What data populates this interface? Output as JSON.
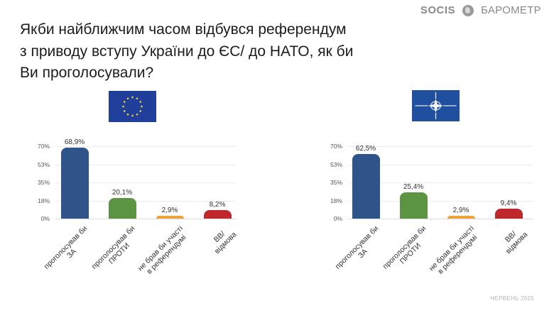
{
  "brand": {
    "logo_text": "SOCIS",
    "globe_icon": "globe-icon",
    "name": "БАРОМЕТР"
  },
  "title": {
    "line1": "Якби найближчим часом відбувся референдум",
    "line2": "з приводу вступу України до ЄС/ до НАТО, як би",
    "line3": "Ви проголосували?"
  },
  "flags": {
    "left": "eu-flag-icon",
    "right": "nato-flag-icon"
  },
  "colors": {
    "za": "#2e5489",
    "proty": "#5b9542",
    "ne_brav": "#eea23a",
    "vv": "#c0272d"
  },
  "footer": {
    "date": "ЧЕРВЕНЬ 2025"
  },
  "chart_data": [
    {
      "type": "bar",
      "title": "ЄС",
      "categories": [
        "проголосував би ЗА",
        "проголосував би ПРОТИ",
        "не брав би участі в референдумі",
        "ВВ/ відмова"
      ],
      "category_lines": [
        [
          "проголосував би",
          "ЗА"
        ],
        [
          "проголосував би",
          "ПРОТИ"
        ],
        [
          "не брав би участі",
          "в референдумі"
        ],
        [
          "ВВ/",
          "відмова"
        ]
      ],
      "values": [
        68.9,
        20.1,
        2.9,
        8.2
      ],
      "value_labels": [
        "68,9%",
        "20,1%",
        "2,9%",
        "8,2%"
      ],
      "bar_colors": [
        "#2e5489",
        "#5b9542",
        "#eea23a",
        "#c0272d"
      ],
      "yticks": [
        "70%",
        "53%",
        "35%",
        "18%",
        "0%"
      ],
      "ytick_values": [
        70,
        52.5,
        35,
        17.5,
        0
      ],
      "ylim": [
        0,
        70
      ],
      "xlabel": "",
      "ylabel": "",
      "grid": true,
      "legend": "none"
    },
    {
      "type": "bar",
      "title": "НАТО",
      "categories": [
        "проголосував би ЗА",
        "проголосував би ПРОТИ",
        "не брав би участі в референдумі",
        "ВВ/ відмова"
      ],
      "category_lines": [
        [
          "проголосував би",
          "ЗА"
        ],
        [
          "проголосував би",
          "ПРОТИ"
        ],
        [
          "не брав би участі",
          "в референдумі"
        ],
        [
          "ВВ/",
          "відмова"
        ]
      ],
      "values": [
        62.5,
        25.4,
        2.9,
        9.4
      ],
      "value_labels": [
        "62,5%",
        "25,4%",
        "2,9%",
        "9,4%"
      ],
      "bar_colors": [
        "#2e5489",
        "#5b9542",
        "#eea23a",
        "#c0272d"
      ],
      "yticks": [
        "70%",
        "53%",
        "35%",
        "18%",
        "0%"
      ],
      "ytick_values": [
        70,
        52.5,
        35,
        17.5,
        0
      ],
      "ylim": [
        0,
        70
      ],
      "xlabel": "",
      "ylabel": "",
      "grid": true,
      "legend": "none"
    }
  ]
}
